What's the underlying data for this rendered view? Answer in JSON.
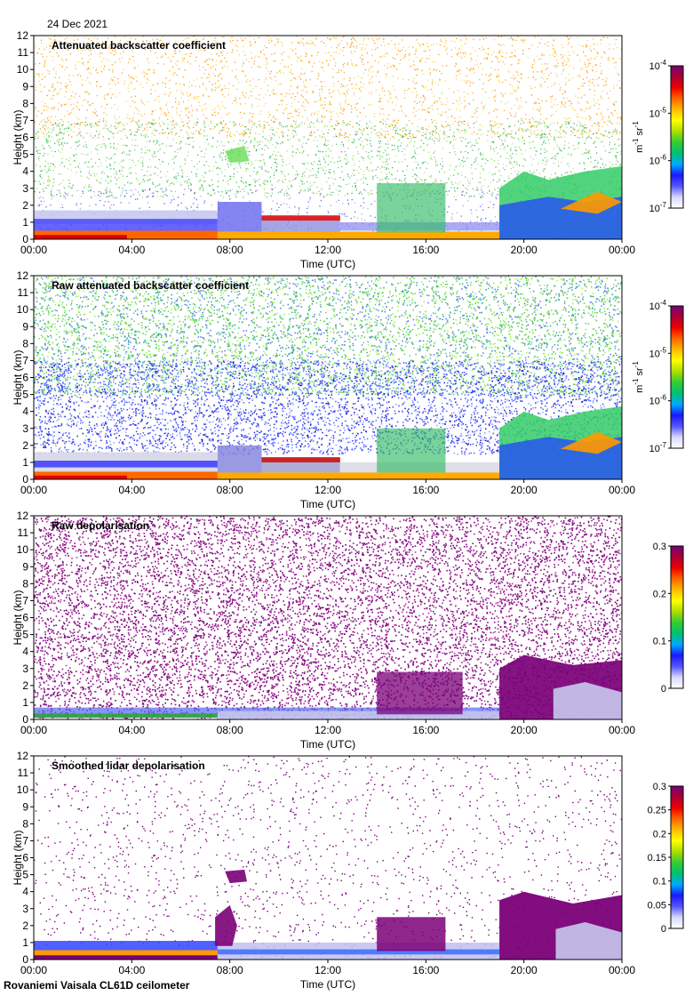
{
  "date": "24 Dec 2021",
  "footer": "Rovaniemi Vaisala CL61D ceilometer",
  "colors": {
    "cmap": [
      "#ffffff",
      "#d8d8ff",
      "#5555ff",
      "#1a1aff",
      "#00aaff",
      "#00c070",
      "#33cc33",
      "#aadd00",
      "#ffff00",
      "#ffbb00",
      "#ff6600",
      "#ee0000",
      "#aa0033",
      "#7a0077"
    ],
    "axis": "#000000",
    "background": "#ffffff"
  },
  "chart_data": [
    {
      "type": "heatmap",
      "title": "Attenuated backscatter coefficient",
      "xlabel": "Time (UTC)",
      "ylabel": "Height (km)",
      "xticks": [
        "00:00",
        "04:00",
        "08:00",
        "12:00",
        "16:00",
        "20:00",
        "00:00"
      ],
      "xlim": [
        0,
        24
      ],
      "ylim": [
        0,
        12
      ],
      "yticks": [
        0,
        1,
        2,
        3,
        4,
        5,
        6,
        7,
        8,
        9,
        10,
        11,
        12
      ],
      "colorbar": {
        "scale": "log",
        "label": "m-1 sr-1",
        "label_main": "m",
        "label_exp1": "-1",
        "label_mid": " sr",
        "label_exp2": "-1",
        "range": [
          1e-07,
          0.0001
        ],
        "ticks": [
          {
            "value": 1e-07,
            "base": "10",
            "exp": "-7"
          },
          {
            "value": 1e-06,
            "base": "10",
            "exp": "-6"
          },
          {
            "value": 1e-05,
            "base": "10",
            "exp": "-5"
          },
          {
            "value": 0.0001,
            "base": "10",
            "exp": "-4"
          }
        ]
      }
    },
    {
      "type": "heatmap",
      "title": "Raw attenuated backscatter coefficient",
      "xlabel": "Time (UTC)",
      "ylabel": "Height (km)",
      "xticks": [
        "00:00",
        "04:00",
        "08:00",
        "12:00",
        "16:00",
        "20:00",
        "00:00"
      ],
      "xlim": [
        0,
        24
      ],
      "ylim": [
        0,
        12
      ],
      "yticks": [
        0,
        1,
        2,
        3,
        4,
        5,
        6,
        7,
        8,
        9,
        10,
        11,
        12
      ],
      "colorbar": {
        "scale": "log",
        "label": "m-1 sr-1",
        "label_main": "m",
        "label_exp1": "-1",
        "label_mid": " sr",
        "label_exp2": "-1",
        "range": [
          1e-07,
          0.0001
        ],
        "ticks": [
          {
            "value": 1e-07,
            "base": "10",
            "exp": "-7"
          },
          {
            "value": 1e-06,
            "base": "10",
            "exp": "-6"
          },
          {
            "value": 1e-05,
            "base": "10",
            "exp": "-5"
          },
          {
            "value": 0.0001,
            "base": "10",
            "exp": "-4"
          }
        ]
      }
    },
    {
      "type": "heatmap",
      "title": "Raw depolarisation",
      "xlabel": "Time (UTC)",
      "ylabel": "Height (km)",
      "xticks": [
        "00:00",
        "04:00",
        "08:00",
        "12:00",
        "16:00",
        "20:00",
        "00:00"
      ],
      "xlim": [
        0,
        24
      ],
      "ylim": [
        0,
        12
      ],
      "yticks": [
        0,
        1,
        2,
        3,
        4,
        5,
        6,
        7,
        8,
        9,
        10,
        11,
        12
      ],
      "colorbar": {
        "scale": "linear",
        "label": "",
        "range": [
          0,
          0.3
        ],
        "ticks": [
          {
            "value": 0,
            "text": "0"
          },
          {
            "value": 0.1,
            "text": "0.1"
          },
          {
            "value": 0.2,
            "text": "0.2"
          },
          {
            "value": 0.3,
            "text": "0.3"
          }
        ]
      }
    },
    {
      "type": "heatmap",
      "title": "Smoothed lidar depolarisation",
      "xlabel": "Time (UTC)",
      "ylabel": "Height (km)",
      "xticks": [
        "00:00",
        "04:00",
        "08:00",
        "12:00",
        "16:00",
        "20:00",
        "00:00"
      ],
      "xlim": [
        0,
        24
      ],
      "ylim": [
        0,
        12
      ],
      "yticks": [
        0,
        1,
        2,
        3,
        4,
        5,
        6,
        7,
        8,
        9,
        10,
        11,
        12
      ],
      "colorbar": {
        "scale": "linear",
        "label": "",
        "range": [
          0,
          0.3
        ],
        "ticks": [
          {
            "value": 0,
            "text": "0"
          },
          {
            "value": 0.05,
            "text": "0.05"
          },
          {
            "value": 0.1,
            "text": "0.1"
          },
          {
            "value": 0.15,
            "text": "0.15"
          },
          {
            "value": 0.2,
            "text": "0.2"
          },
          {
            "value": 0.25,
            "text": "0.25"
          },
          {
            "value": 0.3,
            "text": "0.3"
          }
        ]
      }
    }
  ]
}
